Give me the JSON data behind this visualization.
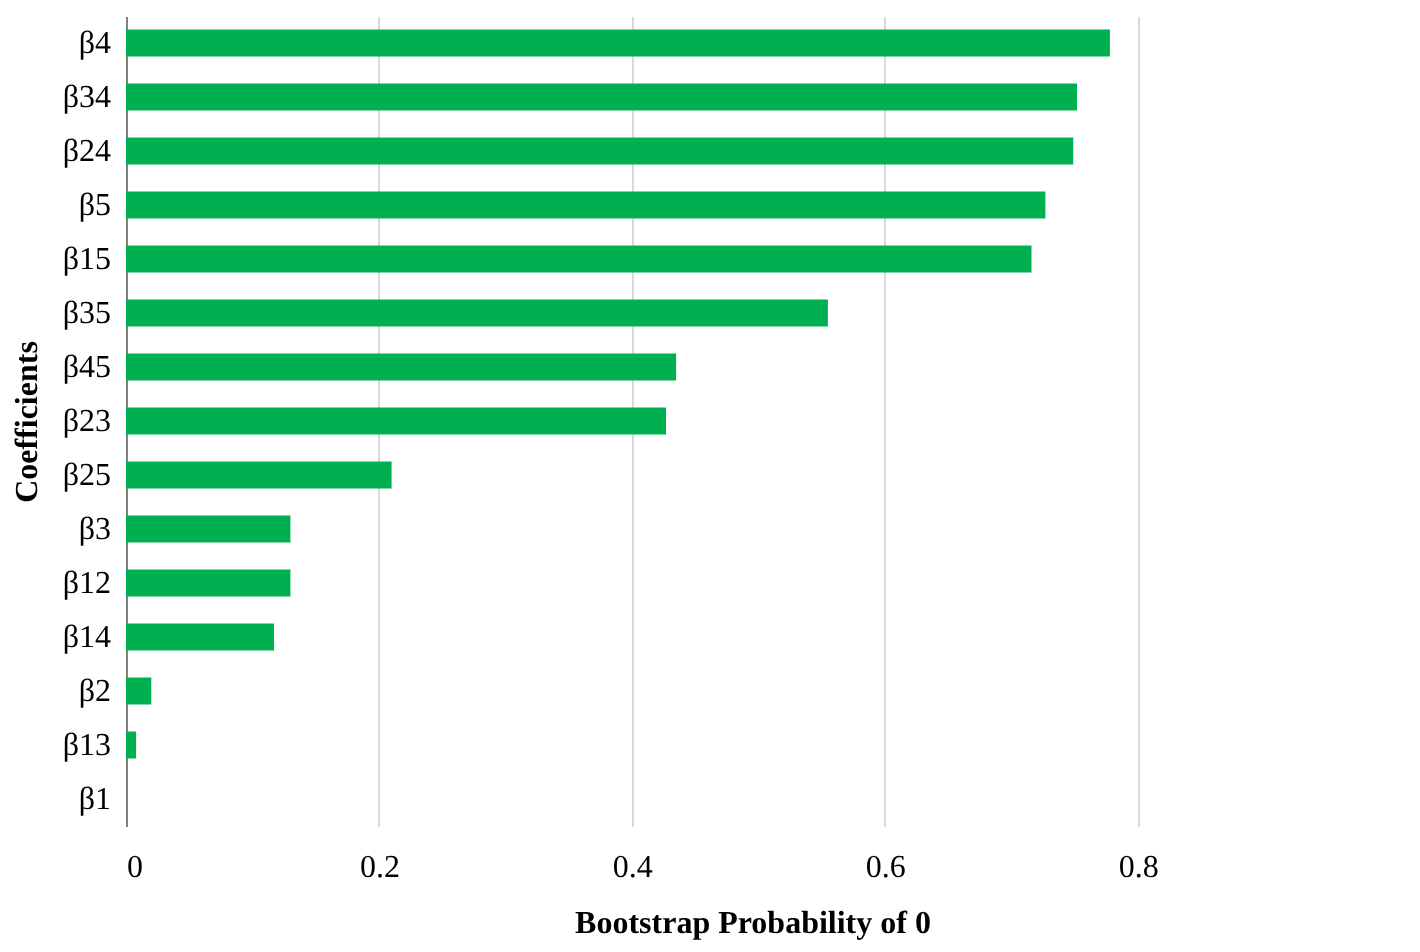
{
  "chart_data": {
    "type": "bar",
    "orientation": "horizontal",
    "xlabel": "Bootstrap Probability of 0",
    "ylabel": "Coefficients",
    "categories": [
      "β4",
      "β34",
      "β24",
      "β5",
      "β15",
      "β35",
      "β45",
      "β23",
      "β25",
      "β3",
      "β12",
      "β14",
      "β2",
      "β13",
      "β1"
    ],
    "values": [
      0.778,
      0.752,
      0.749,
      0.727,
      0.716,
      0.555,
      0.435,
      0.427,
      0.21,
      0.13,
      0.13,
      0.117,
      0.02,
      0.008,
      0
    ],
    "color": "#00b050",
    "xlim": [
      0,
      0.99
    ],
    "xticks": [
      0,
      0.2,
      0.4,
      0.6,
      0.8
    ],
    "grid": "x"
  }
}
